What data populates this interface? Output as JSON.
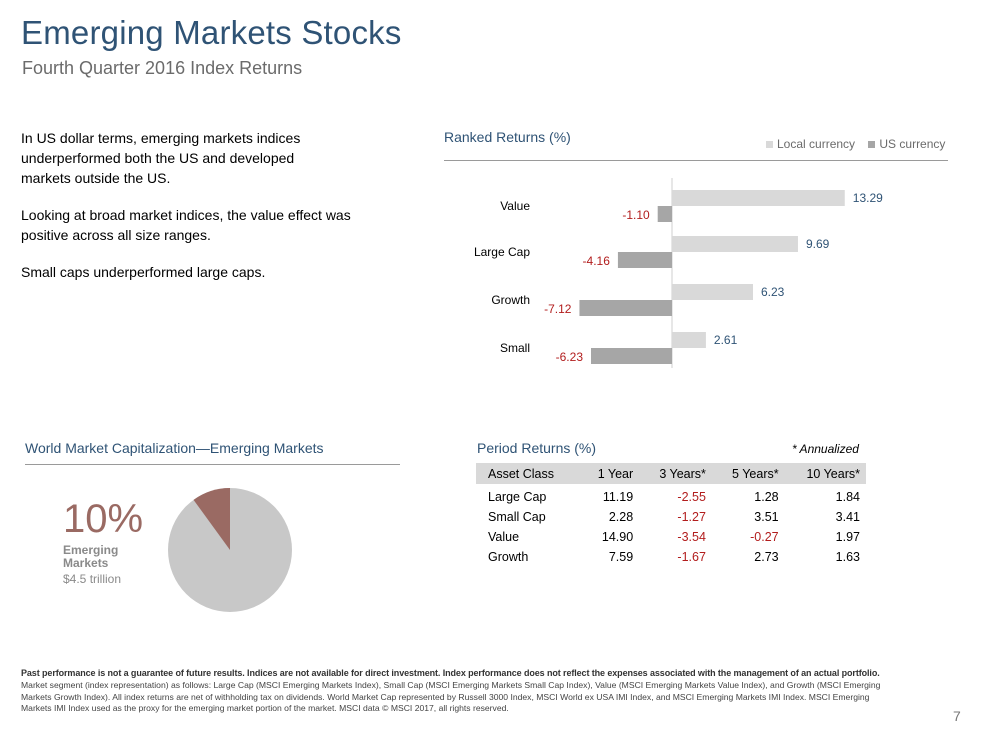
{
  "header": {
    "title": "Emerging Markets Stocks",
    "subtitle": "Fourth Quarter 2016 Index Returns"
  },
  "commentary": [
    "In US dollar terms, emerging markets indices underperformed both the US and developed markets outside the US.",
    "Looking at broad market indices, the value effect was positive across all size ranges.",
    "Small caps underperformed large caps."
  ],
  "ranked": {
    "title": "Ranked Returns (%)",
    "legend": [
      "Local currency",
      "US currency"
    ]
  },
  "colors": {
    "title": "#2f5375",
    "local": "#d9d9d9",
    "us": "#a6a6a6",
    "positive_label": "#2f5375",
    "negative_label": "#b21d1d",
    "pie_rest": "#c8c8c8",
    "pie_em": "#9a6a63"
  },
  "chart_data": [
    {
      "type": "bar",
      "orientation": "horizontal",
      "title": "Ranked Returns (%)",
      "categories": [
        "Value",
        "Large Cap",
        "Growth",
        "Small"
      ],
      "series": [
        {
          "name": "Local currency",
          "values": [
            13.29,
            9.69,
            6.23,
            2.61
          ]
        },
        {
          "name": "US currency",
          "values": [
            -1.1,
            -4.16,
            -7.12,
            -6.23
          ]
        }
      ],
      "xlim": [
        -8,
        16
      ],
      "legend_position": "top-right",
      "grid": false
    },
    {
      "type": "pie",
      "title": "World Market Capitalization—Emerging Markets",
      "slices": [
        {
          "name": "Emerging Markets",
          "value": 10
        },
        {
          "name": "",
          "value": 90
        }
      ]
    }
  ],
  "world_cap": {
    "title": "World Market Capitalization—Emerging Markets",
    "percent": "10%",
    "label": "Emerging Markets",
    "value": "$4.5 trillion"
  },
  "period": {
    "title": "Period Returns (%)",
    "note": "* Annualized",
    "headers": [
      "Asset Class",
      "1 Year",
      "3 Years*",
      "5 Years*",
      "10 Years*"
    ],
    "rows": [
      [
        "Large Cap",
        "11.19",
        "-2.55",
        "1.28",
        "1.84"
      ],
      [
        "Small Cap",
        "2.28",
        "-1.27",
        "3.51",
        "3.41"
      ],
      [
        "Value",
        "14.90",
        "-3.54",
        "-0.27",
        "1.97"
      ],
      [
        "Growth",
        "7.59",
        "-1.67",
        "2.73",
        "1.63"
      ]
    ]
  },
  "footer": {
    "disclaimer_bold": "Past performance is not a guarantee of future results. Indices are not available for direct investment. Index performance does not reflect the expenses associated with the management of an actual portfolio.",
    "disclaimer": "Market segment (index representation) as follows: Large Cap (MSCI Emerging Markets Index), Small Cap (MSCI Emerging Markets Small Cap Index), Value (MSCI Emerging Markets Value Index), and Growth (MSCI Emerging Markets Growth Index). All index returns are net of withholding tax on dividends. World Market Cap represented by Russell 3000 Index, MSCI World ex USA IMI Index, and MSCI Emerging Markets IMI Index. MSCI Emerging Markets IMI Index used as the proxy for the emerging market portion of the market. MSCI data © MSCI 2017, all rights reserved.",
    "page": "7"
  }
}
